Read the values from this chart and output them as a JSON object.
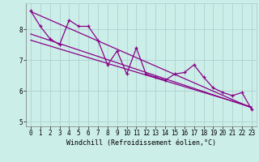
{
  "x": [
    0,
    1,
    2,
    3,
    4,
    5,
    6,
    7,
    8,
    9,
    10,
    11,
    12,
    13,
    14,
    15,
    16,
    17,
    18,
    19,
    20,
    21,
    22,
    23
  ],
  "y_main": [
    8.6,
    8.1,
    7.7,
    7.5,
    8.3,
    8.1,
    8.1,
    7.65,
    6.85,
    7.3,
    6.55,
    7.4,
    6.55,
    6.45,
    6.35,
    6.55,
    6.6,
    6.85,
    6.45,
    6.1,
    5.95,
    5.85,
    5.95,
    5.4
  ],
  "trend1_x": [
    0,
    23
  ],
  "trend1_y": [
    8.58,
    5.45
  ],
  "trend2_x": [
    0,
    23
  ],
  "trend2_y": [
    7.65,
    5.48
  ],
  "trend3_x": [
    0,
    23
  ],
  "trend3_y": [
    7.85,
    5.46
  ],
  "color": "#880088",
  "bg_color": "#cceee8",
  "grid_color": "#aacccc",
  "xlabel": "Windchill (Refroidissement éolien,°C)",
  "ylim": [
    4.85,
    8.85
  ],
  "xlim": [
    -0.5,
    23.5
  ],
  "yticks": [
    5,
    6,
    7,
    8
  ],
  "xticks": [
    0,
    1,
    2,
    3,
    4,
    5,
    6,
    7,
    8,
    9,
    10,
    11,
    12,
    13,
    14,
    15,
    16,
    17,
    18,
    19,
    20,
    21,
    22,
    23
  ],
  "tick_fontsize": 5.5,
  "xlabel_fontsize": 6.0
}
